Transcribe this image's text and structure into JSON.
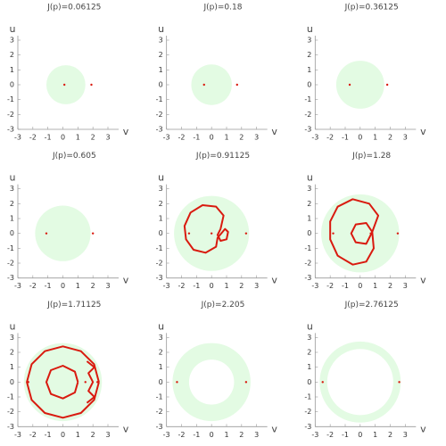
{
  "chart_data": [
    {
      "type": "region",
      "title": "J(p)=0.06125",
      "xlabel": "v",
      "ylabel": "u",
      "xlim": [
        -3,
        3
      ],
      "ylim": [
        -3,
        3
      ],
      "xticks": [
        -3,
        -2,
        -1,
        0,
        1,
        2,
        3
      ],
      "yticks": [
        -3,
        -2,
        -1,
        0,
        1,
        2,
        3
      ],
      "region_color": "#e3fbe3",
      "curve_color": "#d91a0f",
      "disk": {
        "center": 0.2,
        "outer": 1.3,
        "inner": 0
      },
      "points": {
        "x": [
          0.1,
          1.9
        ],
        "y": [
          0,
          0
        ]
      },
      "curves": []
    },
    {
      "type": "region",
      "title": "J(p)=0.18",
      "xlabel": "v",
      "ylabel": "u",
      "xlim": [
        -3,
        3
      ],
      "ylim": [
        -3,
        3
      ],
      "xticks": [
        -3,
        -2,
        -1,
        0,
        1,
        2,
        3
      ],
      "yticks": [
        -3,
        -2,
        -1,
        0,
        1,
        2,
        3
      ],
      "region_color": "#e3fbe3",
      "curve_color": "#d91a0f",
      "disk": {
        "center": 0,
        "outer": 1.35,
        "inner": 0
      },
      "points": {
        "x": [
          -0.5,
          1.7
        ],
        "y": [
          0,
          0
        ]
      },
      "curves": []
    },
    {
      "type": "region",
      "title": "J(p)=0.36125",
      "xlabel": "v",
      "ylabel": "u",
      "xlim": [
        -3,
        3
      ],
      "ylim": [
        -3,
        3
      ],
      "xticks": [
        -3,
        -2,
        -1,
        0,
        1,
        2,
        3
      ],
      "yticks": [
        -3,
        -2,
        -1,
        0,
        1,
        2,
        3
      ],
      "region_color": "#e3fbe3",
      "curve_color": "#d91a0f",
      "disk": {
        "center": 0,
        "outer": 1.6,
        "inner": 0
      },
      "points": {
        "x": [
          -0.7,
          1.8
        ],
        "y": [
          0,
          0
        ]
      },
      "curves": []
    },
    {
      "type": "region",
      "title": "J(p)=0.605",
      "xlabel": "v",
      "ylabel": "u",
      "xlim": [
        -3,
        3
      ],
      "ylim": [
        -3,
        3
      ],
      "xticks": [
        -3,
        -2,
        -1,
        0,
        1,
        2,
        3
      ],
      "yticks": [
        -3,
        -2,
        -1,
        0,
        1,
        2,
        3
      ],
      "region_color": "#e3fbe3",
      "curve_color": "#d91a0f",
      "disk": {
        "center": 0,
        "outer": 1.85,
        "inner": 0
      },
      "points": {
        "x": [
          -1.1,
          2.0
        ],
        "y": [
          0,
          0
        ]
      },
      "curves": []
    },
    {
      "type": "region",
      "title": "J(p)=0.91125",
      "xlabel": "v",
      "ylabel": "u",
      "xlim": [
        -3,
        3
      ],
      "ylim": [
        -3,
        3
      ],
      "xticks": [
        -3,
        -2,
        -1,
        0,
        1,
        2,
        3
      ],
      "yticks": [
        -3,
        -2,
        -1,
        0,
        1,
        2,
        3
      ],
      "region_color": "#e3fbe3",
      "curve_color": "#d91a0f",
      "disk": {
        "center": 0,
        "outer": 2.5,
        "inner": 0
      },
      "points": {
        "x": [
          -1.5,
          0,
          2.3
        ],
        "y": [
          0,
          0,
          0
        ]
      },
      "curves": [
        {
          "x": [
            0.6,
            0.8,
            0.3,
            -0.6,
            -1.4,
            -1.8,
            -1.7,
            -1.2,
            -0.4,
            0.3,
            0.4,
            0.9,
            1.1,
            1.0,
            0.6,
            0.4,
            0.6
          ],
          "y": [
            0.3,
            1.2,
            1.8,
            1.9,
            1.4,
            0.5,
            -0.4,
            -1.1,
            -1.3,
            -0.9,
            -0.3,
            0.3,
            0.1,
            -0.4,
            -0.5,
            -0.1,
            0.3
          ]
        }
      ]
    },
    {
      "type": "region",
      "title": "J(p)=1.28",
      "xlabel": "v",
      "ylabel": "u",
      "xlim": [
        -3,
        3
      ],
      "ylim": [
        -3,
        3
      ],
      "xticks": [
        -3,
        -2,
        -1,
        0,
        1,
        2,
        3
      ],
      "yticks": [
        -3,
        -2,
        -1,
        0,
        1,
        2,
        3
      ],
      "region_color": "#e3fbe3",
      "curve_color": "#d91a0f",
      "disk": {
        "center": 0,
        "outer": 2.6,
        "inner": 0
      },
      "points": {
        "x": [
          -1.8,
          0.7,
          2.5
        ],
        "y": [
          0,
          0,
          0
        ]
      },
      "curves": [
        {
          "x": [
            0.8,
            1.2,
            0.6,
            -0.5,
            -1.5,
            -2.0,
            -2.0,
            -1.5,
            -0.5,
            0.4,
            0.9,
            0.8
          ],
          "y": [
            0.1,
            1.2,
            2.0,
            2.3,
            1.8,
            0.8,
            -0.4,
            -1.5,
            -2.1,
            -1.9,
            -1.0,
            0.1
          ]
        },
        {
          "x": [
            0.8,
            0.4,
            -0.3,
            -0.6,
            -0.3,
            0.4,
            0.8
          ],
          "y": [
            0.1,
            0.7,
            0.6,
            0,
            -0.6,
            -0.7,
            0.1
          ]
        }
      ]
    },
    {
      "type": "region",
      "title": "J(p)=1.71125",
      "xlabel": "v",
      "ylabel": "u",
      "xlim": [
        -3,
        3
      ],
      "ylim": [
        -3,
        3
      ],
      "xticks": [
        -3,
        -2,
        -1,
        0,
        1,
        2,
        3
      ],
      "yticks": [
        -3,
        -2,
        -1,
        0,
        1,
        2,
        3
      ],
      "region_color": "#e3fbe3",
      "curve_color": "#d91a0f",
      "disk": {
        "center": 0,
        "outer": 2.6,
        "inner": 0
      },
      "points": {
        "x": [
          -2.3,
          1.5,
          2.3
        ],
        "y": [
          0,
          0,
          0
        ]
      },
      "curves": [
        {
          "x": [
            2.4,
            2.08,
            1.2,
            0,
            -1.2,
            -2.08,
            -2.4,
            -2.08,
            -1.2,
            0,
            1.2,
            2.08,
            2.4
          ],
          "y": [
            0,
            1.2,
            2.08,
            2.4,
            2.08,
            1.2,
            0,
            -1.2,
            -2.08,
            -2.4,
            -2.08,
            -1.2,
            0
          ]
        },
        {
          "x": [
            1.0,
            0.8,
            0,
            -0.8,
            -1.1,
            -0.8,
            0,
            0.8,
            1.0
          ],
          "y": [
            0,
            0.7,
            1.1,
            0.8,
            0,
            -0.8,
            -1.1,
            -0.7,
            0
          ]
        },
        {
          "x": [
            1.6,
            2.1,
            1.7,
            2.0,
            1.7,
            2.1,
            1.6
          ],
          "y": [
            1.4,
            1.0,
            0.6,
            0.0,
            -0.6,
            -1.0,
            -1.4
          ]
        }
      ]
    },
    {
      "type": "region",
      "title": "J(p)=2.205",
      "xlabel": "v",
      "ylabel": "u",
      "xlim": [
        -3,
        3
      ],
      "ylim": [
        -3,
        3
      ],
      "xticks": [
        -3,
        -2,
        -1,
        0,
        1,
        2,
        3
      ],
      "yticks": [
        -3,
        -2,
        -1,
        0,
        1,
        2,
        3
      ],
      "region_color": "#e3fbe3",
      "curve_color": "#d91a0f",
      "disk": {
        "center": 0,
        "outer": 2.6,
        "inner": 1.5
      },
      "points": {
        "x": [
          -2.3,
          2.3
        ],
        "y": [
          0,
          0
        ]
      },
      "curves": []
    },
    {
      "type": "region",
      "title": "J(p)=2.76125",
      "xlabel": "v",
      "ylabel": "u",
      "xlim": [
        -3,
        3
      ],
      "ylim": [
        -3,
        3
      ],
      "xticks": [
        -3,
        -2,
        -1,
        0,
        1,
        2,
        3
      ],
      "yticks": [
        -3,
        -2,
        -1,
        0,
        1,
        2,
        3
      ],
      "region_color": "#e3fbe3",
      "curve_color": "#d91a0f",
      "disk": {
        "center": 0,
        "outer": 2.7,
        "inner": 2.2
      },
      "points": {
        "x": [
          -2.5,
          2.6
        ],
        "y": [
          0,
          0
        ]
      },
      "curves": []
    }
  ]
}
